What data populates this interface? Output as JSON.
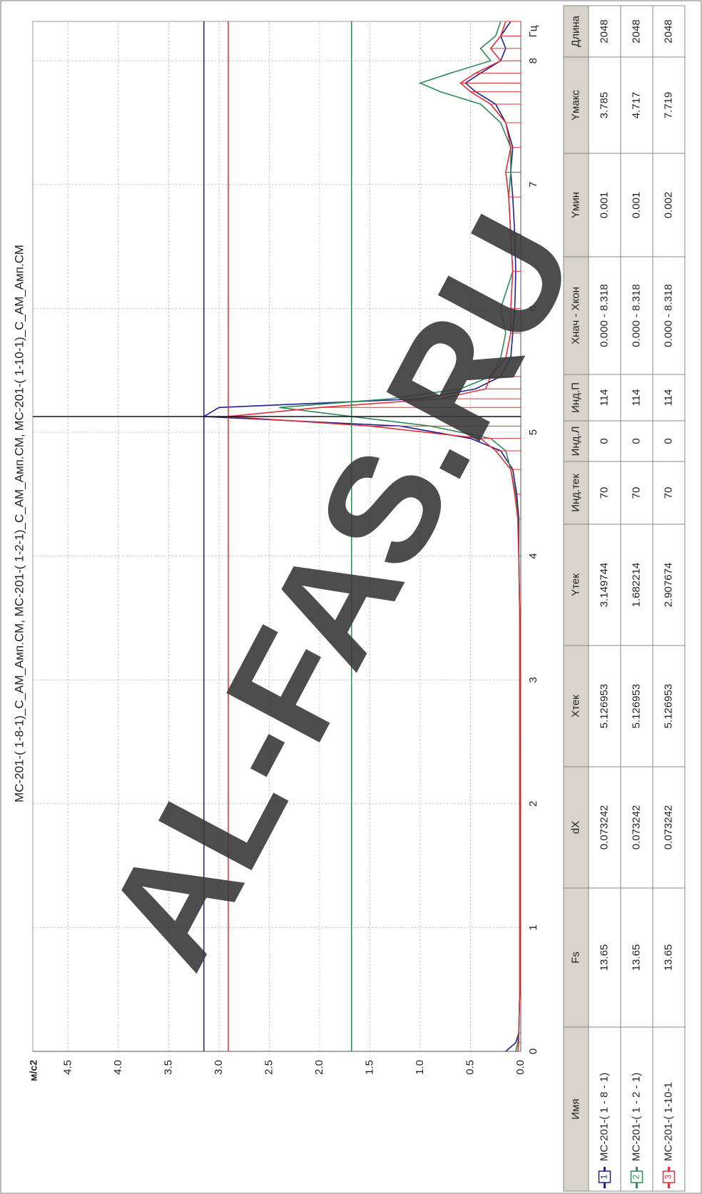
{
  "chart_data": {
    "type": "line",
    "title": "MC-201-( 1-8-1)_C_AM_Амп.СМ, MC-201-( 1-2-1)_C_AM_Амп.СМ, MC-201-( 1-10-1)_C_AM_Амп.СМ",
    "y_label": "м/с2",
    "x_label": "Гц",
    "x": [
      0,
      0.07,
      0.15,
      0.5,
      1,
      1.5,
      2,
      2.5,
      3,
      3.5,
      4,
      4.3,
      4.5,
      4.7,
      4.85,
      4.95,
      5.05,
      5.127,
      5.2,
      5.27,
      5.35,
      5.45,
      5.6,
      5.8,
      6.0,
      6.3,
      6.6,
      6.9,
      7.1,
      7.3,
      7.5,
      7.65,
      7.75,
      7.82,
      7.9,
      8.0,
      8.1,
      8.2,
      8.318
    ],
    "series": [
      {
        "color": "#1f1f8f",
        "values": [
          0.15,
          0.05,
          0.02,
          0.01,
          0.01,
          0.01,
          0.01,
          0.01,
          0.01,
          0.01,
          0.02,
          0.02,
          0.04,
          0.08,
          0.2,
          0.5,
          1.2,
          3.149744,
          3.0,
          1.0,
          0.45,
          0.2,
          0.1,
          0.08,
          0.06,
          0.05,
          0.06,
          0.08,
          0.1,
          0.08,
          0.15,
          0.25,
          0.45,
          0.55,
          0.4,
          0.2,
          0.15,
          0.2,
          0.1
        ]
      },
      {
        "color": "#2e8b57",
        "values": [
          0.05,
          0.03,
          0.02,
          0.01,
          0.01,
          0.01,
          0.01,
          0.01,
          0.01,
          0.01,
          0.02,
          0.03,
          0.05,
          0.1,
          0.15,
          0.3,
          0.9,
          1.682214,
          2.4,
          1.3,
          0.6,
          0.3,
          0.2,
          0.15,
          0.2,
          0.08,
          0.1,
          0.12,
          0.1,
          0.1,
          0.2,
          0.4,
          0.8,
          1.0,
          0.7,
          0.3,
          0.4,
          0.25,
          0.2
        ]
      },
      {
        "color": "#e0303a",
        "stems": true,
        "values": [
          0.03,
          0.02,
          0.02,
          0.01,
          0.01,
          0.01,
          0.01,
          0.01,
          0.01,
          0.01,
          0.02,
          0.03,
          0.06,
          0.1,
          0.25,
          0.4,
          1.5,
          2.907674,
          2.0,
          0.8,
          0.35,
          0.3,
          0.15,
          0.1,
          0.1,
          0.08,
          0.1,
          0.12,
          0.15,
          0.1,
          0.15,
          0.3,
          0.5,
          0.6,
          0.45,
          0.2,
          0.3,
          0.2,
          0.15
        ]
      }
    ],
    "xlim": [
      0,
      8.318
    ],
    "xticks": [
      0,
      1,
      2,
      3,
      4,
      5,
      6,
      7,
      8
    ],
    "ylim": [
      0,
      4.85
    ],
    "yticks": [
      {
        "value": 0,
        "label": "0.0"
      },
      0.5,
      {
        "value": 1,
        "label": "1.0"
      },
      1.5,
      {
        "value": 2,
        "label": "2.0"
      },
      2.5,
      {
        "value": 3,
        "label": "3.0"
      },
      3.5,
      {
        "value": 4,
        "label": "4.0"
      },
      4.5
    ],
    "grid": true
  },
  "table": {
    "columns": [
      "Имя",
      "Fs",
      "dX",
      "Xтек",
      "Yтек",
      "Инд.тек",
      "Инд.Л",
      "Инд.П",
      "Xнач - Xкон",
      "Yмин",
      "Yмакс",
      "Длина"
    ],
    "markers": [
      "1",
      "2",
      "3"
    ],
    "rows": [
      [
        "MC-201-( 1 - 8 - 1)",
        13.65,
        0.073242,
        5.126953,
        3.149744,
        70,
        0,
        114,
        "0.000 - 8.318",
        0.001,
        3.785,
        2048
      ],
      [
        "MC-201-( 1 - 2 - 1)",
        13.65,
        0.073242,
        5.126953,
        1.682214,
        70,
        0,
        114,
        "0.000 - 8.318",
        0.001,
        4.717,
        2048
      ],
      [
        "MC-201-( 1-10-1",
        13.65,
        0.073242,
        5.126953,
        2.907674,
        70,
        0,
        114,
        "0.000 - 8.318",
        0.002,
        7.719,
        2048
      ]
    ]
  },
  "watermark": "AL-FAS.RU"
}
